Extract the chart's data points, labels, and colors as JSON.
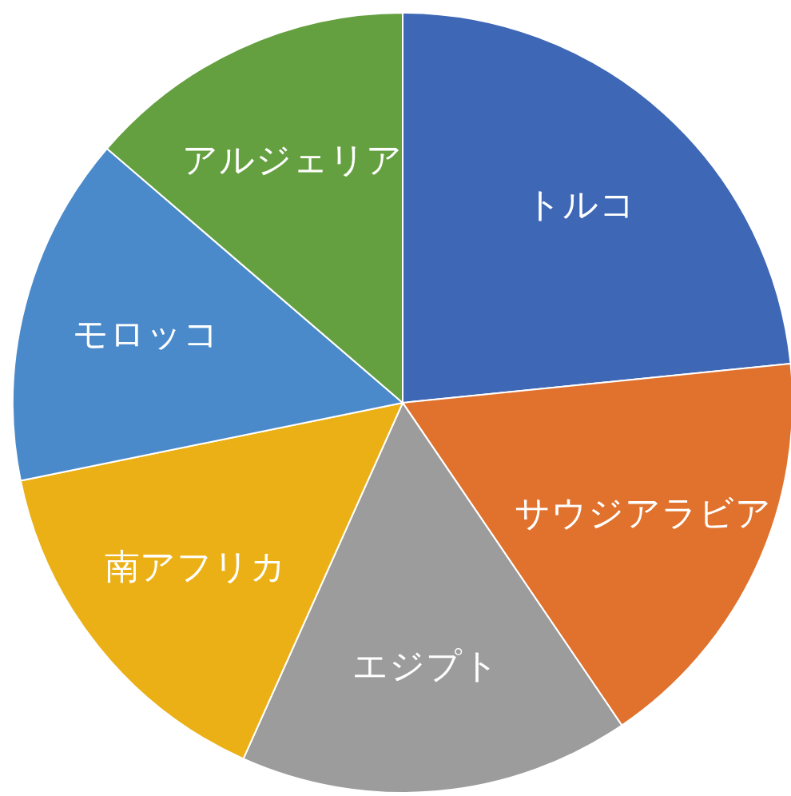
{
  "chart_data": {
    "type": "pie",
    "categories": [
      "トルコ",
      "サウジアラビア",
      "エジプト",
      "南アフリカ",
      "モロッコ",
      "アルジェリア"
    ],
    "values": [
      23.4,
      17.1,
      16.2,
      15.1,
      14.5,
      13.7
    ],
    "colors": [
      "#3e67b5",
      "#e0722e",
      "#9c9c9c",
      "#ebb015",
      "#4a8acb",
      "#64a040"
    ]
  }
}
